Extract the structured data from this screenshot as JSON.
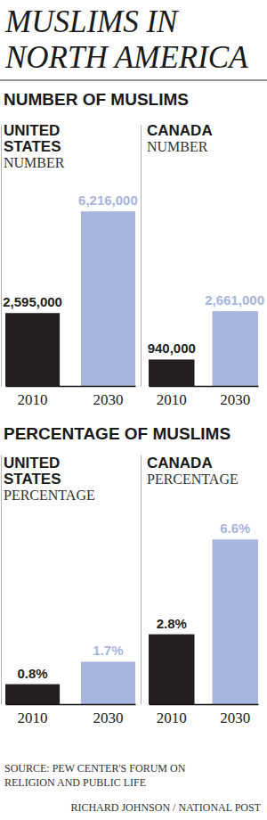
{
  "title": "MUSLIMS IN NORTH AMERICA",
  "sections": [
    "NUMBER OF MUSLIMS",
    "PERCENTAGE OF MUSLIMS"
  ],
  "chart_data": [
    {
      "type": "bar",
      "title": "UNITED STATES",
      "subtitle": "NUMBER",
      "categories": [
        "2010",
        "2030"
      ],
      "values": [
        2595000,
        6216000
      ],
      "value_labels": [
        "2,595,000",
        "6,216,000"
      ],
      "colors": [
        "#231f20",
        "#a6b6df"
      ],
      "ylim": [
        0,
        9300000
      ],
      "data_labels": true,
      "tick_labels": "x"
    },
    {
      "type": "bar",
      "title": "CANADA",
      "subtitle": "NUMBER",
      "categories": [
        "2010",
        "2030"
      ],
      "values": [
        940000,
        2661000
      ],
      "value_labels": [
        "940,000",
        "2,661,000"
      ],
      "colors": [
        "#231f20",
        "#a6b6df"
      ],
      "ylim": [
        0,
        9300000
      ],
      "data_labels": true,
      "tick_labels": "x"
    },
    {
      "type": "bar",
      "title": "UNITED STATES",
      "subtitle": "PERCENTAGE",
      "categories": [
        "2010",
        "2030"
      ],
      "values": [
        0.8,
        1.7
      ],
      "value_labels": [
        "0.8%",
        "1.7%"
      ],
      "colors": [
        "#231f20",
        "#a6b6df"
      ],
      "ylim": [
        0,
        10
      ],
      "data_labels": true,
      "tick_labels": "x"
    },
    {
      "type": "bar",
      "title": "CANADA",
      "subtitle": "PERCENTAGE",
      "categories": [
        "2010",
        "2030"
      ],
      "values": [
        2.8,
        6.6
      ],
      "value_labels": [
        "2.8%",
        "6.6%"
      ],
      "colors": [
        "#231f20",
        "#a6b6df"
      ],
      "ylim": [
        0,
        10
      ],
      "data_labels": true,
      "tick_labels": "x"
    }
  ],
  "source": "SOURCE: PEW CENTER'S FORUM ON RELIGION AND PUBLIC LIFE",
  "credit": "RICHARD JOHNSON / NATIONAL POST"
}
